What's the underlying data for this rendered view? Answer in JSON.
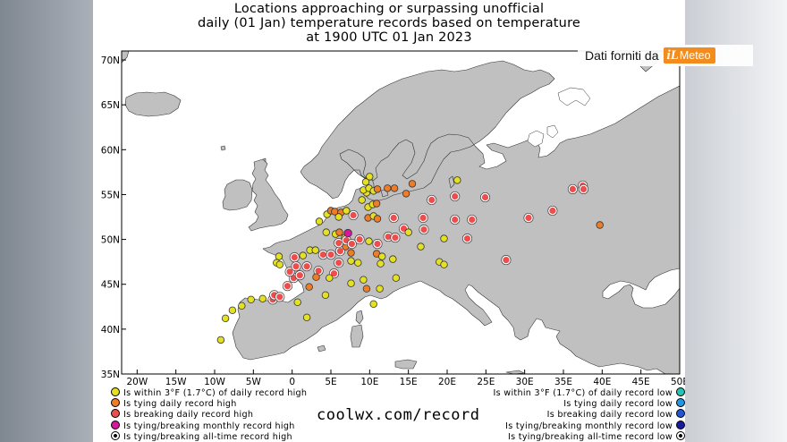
{
  "title": {
    "line1": "Locations approaching or surpassing unofficial",
    "line2": "daily (01 Jan) temperature records based on temperature",
    "line3": "at 1900 UTC 01 Jan 2023"
  },
  "brand": {
    "text": "Dati forniti da",
    "logo_letter": "iL",
    "logo_word": "Meteo",
    "color": "#f28c1e"
  },
  "map": {
    "lon_range": [
      -22,
      50
    ],
    "lat_range": [
      35,
      71
    ],
    "lat_ticks": [
      "35N",
      "40N",
      "45N",
      "50N",
      "55N",
      "60N",
      "65N",
      "70N"
    ],
    "lon_ticks": [
      "20W",
      "15W",
      "10W",
      "5W",
      "0",
      "5E",
      "10E",
      "15E",
      "20E",
      "25E",
      "30E",
      "35E",
      "40E",
      "45E",
      "50E"
    ],
    "land_color": "#c0c0c0",
    "sea_color": "#ffffff",
    "stations": [
      {
        "lon": -9.2,
        "lat": 38.8,
        "c": "within_high"
      },
      {
        "lon": -8.6,
        "lat": 41.2,
        "c": "within_high"
      },
      {
        "lon": -7.7,
        "lat": 42.1,
        "c": "within_high"
      },
      {
        "lon": -6.5,
        "lat": 42.6,
        "c": "within_high"
      },
      {
        "lon": -5.3,
        "lat": 43.3,
        "c": "within_high"
      },
      {
        "lon": -3.8,
        "lat": 43.4,
        "c": "within_high"
      },
      {
        "lon": -2.5,
        "lat": 43.3,
        "c": "breaking_high"
      },
      {
        "lon": -2.3,
        "lat": 43.8,
        "c": "breaking_high"
      },
      {
        "lon": -1.6,
        "lat": 43.6,
        "c": "breaking_high"
      },
      {
        "lon": -0.6,
        "lat": 44.8,
        "c": "breaking_high"
      },
      {
        "lon": 0.2,
        "lat": 45.7,
        "c": "breaking_high"
      },
      {
        "lon": -0.3,
        "lat": 46.4,
        "c": "breaking_high"
      },
      {
        "lon": 0.5,
        "lat": 47.0,
        "c": "breaking_high"
      },
      {
        "lon": 1.0,
        "lat": 46.0,
        "c": "breaking_high"
      },
      {
        "lon": 1.9,
        "lat": 47.0,
        "c": "breaking_high"
      },
      {
        "lon": 0.3,
        "lat": 48.0,
        "c": "breaking_high"
      },
      {
        "lon": 1.4,
        "lat": 48.2,
        "c": "within_high"
      },
      {
        "lon": -1.7,
        "lat": 48.1,
        "c": "within_high"
      },
      {
        "lon": -2.0,
        "lat": 47.4,
        "c": "within_high"
      },
      {
        "lon": -1.6,
        "lat": 47.2,
        "c": "within_high"
      },
      {
        "lon": 0.7,
        "lat": 43.0,
        "c": "within_high"
      },
      {
        "lon": 1.9,
        "lat": 41.3,
        "c": "within_high"
      },
      {
        "lon": 2.3,
        "lat": 48.8,
        "c": "within_high"
      },
      {
        "lon": 3.0,
        "lat": 48.8,
        "c": "within_high"
      },
      {
        "lon": 4.0,
        "lat": 48.3,
        "c": "breaking_high"
      },
      {
        "lon": 5.0,
        "lat": 48.3,
        "c": "breaking_high"
      },
      {
        "lon": 3.4,
        "lat": 46.5,
        "c": "breaking_high"
      },
      {
        "lon": 5.4,
        "lat": 46.2,
        "c": "breaking_high"
      },
      {
        "lon": 4.8,
        "lat": 45.7,
        "c": "within_high"
      },
      {
        "lon": 3.1,
        "lat": 45.8,
        "c": "tying_high"
      },
      {
        "lon": 2.2,
        "lat": 44.7,
        "c": "tying_high"
      },
      {
        "lon": 4.3,
        "lat": 43.8,
        "c": "within_high"
      },
      {
        "lon": 6.0,
        "lat": 47.4,
        "c": "breaking_high"
      },
      {
        "lon": 6.2,
        "lat": 48.7,
        "c": "breaking_high"
      },
      {
        "lon": 6.0,
        "lat": 49.6,
        "c": "breaking_high"
      },
      {
        "lon": 6.9,
        "lat": 49.2,
        "c": "tying_high"
      },
      {
        "lon": 7.6,
        "lat": 48.5,
        "c": "tying_high"
      },
      {
        "lon": 7.6,
        "lat": 47.6,
        "c": "within_high"
      },
      {
        "lon": 8.5,
        "lat": 47.4,
        "c": "within_high"
      },
      {
        "lon": 4.4,
        "lat": 50.8,
        "c": "within_high"
      },
      {
        "lon": 5.6,
        "lat": 50.6,
        "c": "within_high"
      },
      {
        "lon": 6.1,
        "lat": 50.8,
        "c": "tying_high"
      },
      {
        "lon": 6.8,
        "lat": 50.2,
        "c": "within_high"
      },
      {
        "lon": 7.0,
        "lat": 49.9,
        "c": "breaking_high"
      },
      {
        "lon": 7.2,
        "lat": 50.7,
        "c": "breaking_monthly_high"
      },
      {
        "lon": 7.7,
        "lat": 49.5,
        "c": "breaking_high"
      },
      {
        "lon": 8.7,
        "lat": 50.0,
        "c": "breaking_high"
      },
      {
        "lon": 9.9,
        "lat": 49.8,
        "c": "within_high"
      },
      {
        "lon": 11.0,
        "lat": 49.5,
        "c": "breaking_high"
      },
      {
        "lon": 10.9,
        "lat": 48.4,
        "c": "tying_high"
      },
      {
        "lon": 11.6,
        "lat": 48.1,
        "c": "within_high"
      },
      {
        "lon": 13.0,
        "lat": 47.8,
        "c": "within_high"
      },
      {
        "lon": 11.4,
        "lat": 47.3,
        "c": "within_high"
      },
      {
        "lon": 9.2,
        "lat": 45.5,
        "c": "within_high"
      },
      {
        "lon": 11.3,
        "lat": 44.5,
        "c": "within_high"
      },
      {
        "lon": 9.6,
        "lat": 44.5,
        "c": "tying_high"
      },
      {
        "lon": 10.5,
        "lat": 42.8,
        "c": "within_high"
      },
      {
        "lon": 13.4,
        "lat": 45.7,
        "c": "within_high"
      },
      {
        "lon": 7.6,
        "lat": 45.1,
        "c": "within_high"
      },
      {
        "lon": 3.5,
        "lat": 52.0,
        "c": "within_high"
      },
      {
        "lon": 4.5,
        "lat": 52.8,
        "c": "within_high"
      },
      {
        "lon": 5.0,
        "lat": 53.2,
        "c": "tying_high"
      },
      {
        "lon": 5.5,
        "lat": 53.1,
        "c": "tying_high"
      },
      {
        "lon": 6.3,
        "lat": 53.0,
        "c": "tying_high"
      },
      {
        "lon": 7.0,
        "lat": 53.2,
        "c": "within_high"
      },
      {
        "lon": 6.0,
        "lat": 52.5,
        "c": "within_high"
      },
      {
        "lon": 7.9,
        "lat": 52.7,
        "c": "breaking_high"
      },
      {
        "lon": 9.8,
        "lat": 52.4,
        "c": "tying_high"
      },
      {
        "lon": 10.5,
        "lat": 52.6,
        "c": "within_high"
      },
      {
        "lon": 11.0,
        "lat": 52.3,
        "c": "tying_high"
      },
      {
        "lon": 9.8,
        "lat": 53.6,
        "c": "within_high"
      },
      {
        "lon": 10.4,
        "lat": 53.9,
        "c": "within_high"
      },
      {
        "lon": 10.9,
        "lat": 54.0,
        "c": "tying_high"
      },
      {
        "lon": 9.0,
        "lat": 54.4,
        "c": "within_high"
      },
      {
        "lon": 9.6,
        "lat": 55.2,
        "c": "within_high"
      },
      {
        "lon": 9.2,
        "lat": 55.5,
        "c": "within_high"
      },
      {
        "lon": 9.9,
        "lat": 55.7,
        "c": "within_high"
      },
      {
        "lon": 10.5,
        "lat": 55.4,
        "c": "within_high"
      },
      {
        "lon": 9.5,
        "lat": 56.4,
        "c": "within_high"
      },
      {
        "lon": 10.0,
        "lat": 57.0,
        "c": "within_high"
      },
      {
        "lon": 11.0,
        "lat": 55.6,
        "c": "tying_high"
      },
      {
        "lon": 12.3,
        "lat": 55.7,
        "c": "tying_high"
      },
      {
        "lon": 13.2,
        "lat": 55.7,
        "c": "tying_high"
      },
      {
        "lon": 14.7,
        "lat": 55.1,
        "c": "tying_high"
      },
      {
        "lon": 15.5,
        "lat": 56.2,
        "c": "tying_high"
      },
      {
        "lon": 13.1,
        "lat": 52.4,
        "c": "breaking_high"
      },
      {
        "lon": 12.4,
        "lat": 50.3,
        "c": "breaking_high"
      },
      {
        "lon": 13.3,
        "lat": 50.2,
        "c": "breaking_high"
      },
      {
        "lon": 14.4,
        "lat": 51.2,
        "c": "breaking_high"
      },
      {
        "lon": 15.0,
        "lat": 50.8,
        "c": "within_high"
      },
      {
        "lon": 16.6,
        "lat": 49.2,
        "c": "within_high"
      },
      {
        "lon": 17.0,
        "lat": 51.1,
        "c": "breaking_high"
      },
      {
        "lon": 16.9,
        "lat": 52.4,
        "c": "breaking_high"
      },
      {
        "lon": 18.0,
        "lat": 54.4,
        "c": "breaking_high"
      },
      {
        "lon": 19.6,
        "lat": 50.1,
        "c": "within_high"
      },
      {
        "lon": 21.0,
        "lat": 52.2,
        "c": "breaking_high"
      },
      {
        "lon": 21.0,
        "lat": 54.8,
        "c": "breaking_high"
      },
      {
        "lon": 21.3,
        "lat": 56.6,
        "c": "within_high"
      },
      {
        "lon": 23.2,
        "lat": 52.2,
        "c": "breaking_high"
      },
      {
        "lon": 24.9,
        "lat": 54.7,
        "c": "breaking_high"
      },
      {
        "lon": 22.6,
        "lat": 50.1,
        "c": "breaking_high"
      },
      {
        "lon": 19.0,
        "lat": 47.5,
        "c": "within_high"
      },
      {
        "lon": 19.6,
        "lat": 47.2,
        "c": "within_high"
      },
      {
        "lon": 27.6,
        "lat": 47.7,
        "c": "breaking_high"
      },
      {
        "lon": 30.5,
        "lat": 52.4,
        "c": "breaking_high"
      },
      {
        "lon": 33.6,
        "lat": 53.2,
        "c": "breaking_high"
      },
      {
        "lon": 36.2,
        "lat": 55.6,
        "c": "breaking_high"
      },
      {
        "lon": 37.5,
        "lat": 56.0,
        "c": "breaking_high"
      },
      {
        "lon": 37.6,
        "lat": 55.6,
        "c": "breaking_high"
      },
      {
        "lon": 39.7,
        "lat": 51.6,
        "c": "tying_high"
      }
    ]
  },
  "legend": {
    "left": [
      {
        "label": "Is within 3°F (1.7°C) of daily record high",
        "color": "#e4e022",
        "key": "within_high"
      },
      {
        "label": "Is tying daily record high",
        "color": "#ef7d28",
        "key": "tying_high"
      },
      {
        "label": "Is breaking daily record high",
        "color": "#ee4d4d",
        "key": "breaking_high"
      },
      {
        "label": "Is tying/breaking monthly record high",
        "color": "#d8159e",
        "key": "breaking_monthly_high"
      },
      {
        "label": "Is tying/breaking all-time record high",
        "color": "#ffffff",
        "key": "alltime_high"
      }
    ],
    "right": [
      {
        "label": "Is within 3°F (1.7°C) of daily record low",
        "color": "#22c5b2"
      },
      {
        "label": "Is tying daily record low",
        "color": "#2296e6"
      },
      {
        "label": "Is breaking daily record low",
        "color": "#2255d6"
      },
      {
        "label": "Is tying/breaking monthly record low",
        "color": "#1a1aa0"
      },
      {
        "label": "Is tying/breaking all-time record low",
        "color": "#ffffff"
      }
    ]
  },
  "url": "coolwx.com/record"
}
